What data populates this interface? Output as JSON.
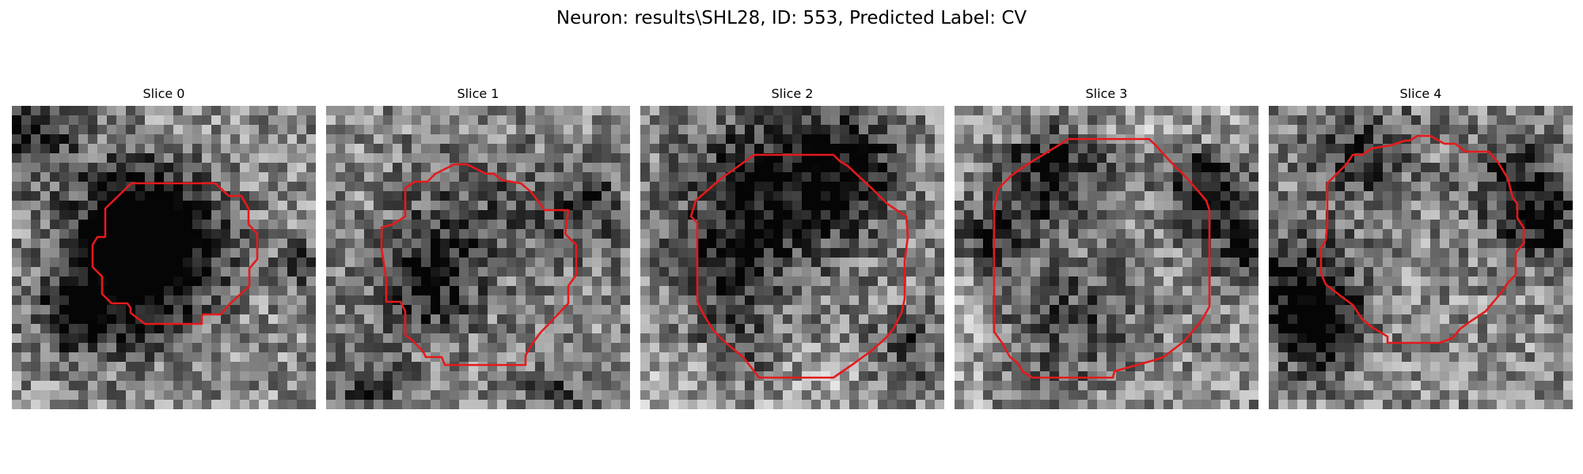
{
  "figure": {
    "title": "Neuron: results\\SHL28, ID: 553, Predicted Label: CV"
  },
  "panels": [
    {
      "title": "Slice 0",
      "name": "slice-0"
    },
    {
      "title": "Slice 1",
      "name": "slice-1"
    },
    {
      "title": "Slice 2",
      "name": "slice-2"
    },
    {
      "title": "Slice 3",
      "name": "slice-3"
    },
    {
      "title": "Slice 4",
      "name": "slice-4"
    }
  ],
  "colors": {
    "contour": "#e41a1c",
    "background": "#ffffff",
    "text": "#000000"
  },
  "image_grid": {
    "cells": 32
  }
}
